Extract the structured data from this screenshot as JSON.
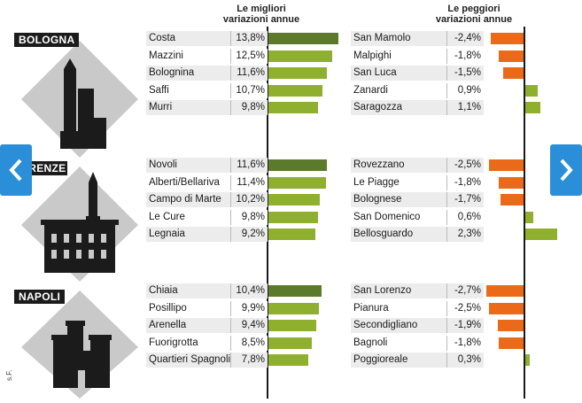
{
  "headers": {
    "best": "Le migliori\nvariazioni annue",
    "worst": "Le peggiori\nvariazioni annue"
  },
  "credit": "s.F.",
  "colors": {
    "best_top": "#5c7a2b",
    "best": "#8fb02e",
    "worst_negative": "#ea6a1a",
    "worst_positive": "#8fb02e",
    "row_even": "#ececec",
    "row_odd": "#ffffff",
    "nav": "#2a8fd8"
  },
  "icons": {
    "prev": "chevron-left-icon",
    "next": "chevron-right-icon",
    "bologna": "towers-icon",
    "firenze": "palazzo-vecchio-icon",
    "napoli": "castle-icon"
  },
  "chart_data": [
    {
      "type": "bar",
      "city": "BOLOGNA",
      "best": {
        "categories": [
          "Costa",
          "Mazzini",
          "Bolognina",
          "Saffi",
          "Murri"
        ],
        "values": [
          13.8,
          12.5,
          11.6,
          10.7,
          9.8
        ],
        "labels": [
          "13,8%",
          "12,5%",
          "11,6%",
          "10,7%",
          "9,8%"
        ]
      },
      "worst": {
        "categories": [
          "San Mamolo",
          "Malpighi",
          "San Luca",
          "Zanardi",
          "Saragozza"
        ],
        "values": [
          -2.4,
          -1.8,
          -1.5,
          0.9,
          1.1
        ],
        "labels": [
          "-2,4%",
          "-1,8%",
          "-1,5%",
          "0,9%",
          "1,1%"
        ]
      }
    },
    {
      "type": "bar",
      "city": "FIRENZE",
      "best": {
        "categories": [
          "Novoli",
          "Alberti/Bellariva",
          "Campo di Marte",
          "Le Cure",
          "Legnaia"
        ],
        "values": [
          11.6,
          11.4,
          10.2,
          9.8,
          9.2
        ],
        "labels": [
          "11,6%",
          "11,4%",
          "10,2%",
          "9,8%",
          "9,2%"
        ]
      },
      "worst": {
        "categories": [
          "Rovezzano",
          "Le Piagge",
          "Bolognese",
          "San Domenico",
          "Bellosguardo"
        ],
        "values": [
          -2.5,
          -1.8,
          -1.7,
          0.6,
          2.3
        ],
        "labels": [
          "-2,5%",
          "-1,8%",
          "-1,7%",
          "0,6%",
          "2,3%"
        ]
      }
    },
    {
      "type": "bar",
      "city": "NAPOLI",
      "best": {
        "categories": [
          "Chiaia",
          "Posillipo",
          "Arenella",
          "Fuorigrotta",
          "Quartieri Spagnoli"
        ],
        "values": [
          10.4,
          9.9,
          9.4,
          8.5,
          7.8
        ],
        "labels": [
          "10,4%",
          "9,9%",
          "9,4%",
          "8,5%",
          "7,8%"
        ]
      },
      "worst": {
        "categories": [
          "San Lorenzo",
          "Pianura",
          "Secondigliano",
          "Bagnoli",
          "Poggioreale"
        ],
        "values": [
          -2.7,
          -2.5,
          -1.9,
          -1.8,
          0.3
        ],
        "labels": [
          "-2,7%",
          "-2,5%",
          "-1,9%",
          "-1,8%",
          "0,3%"
        ]
      }
    }
  ]
}
